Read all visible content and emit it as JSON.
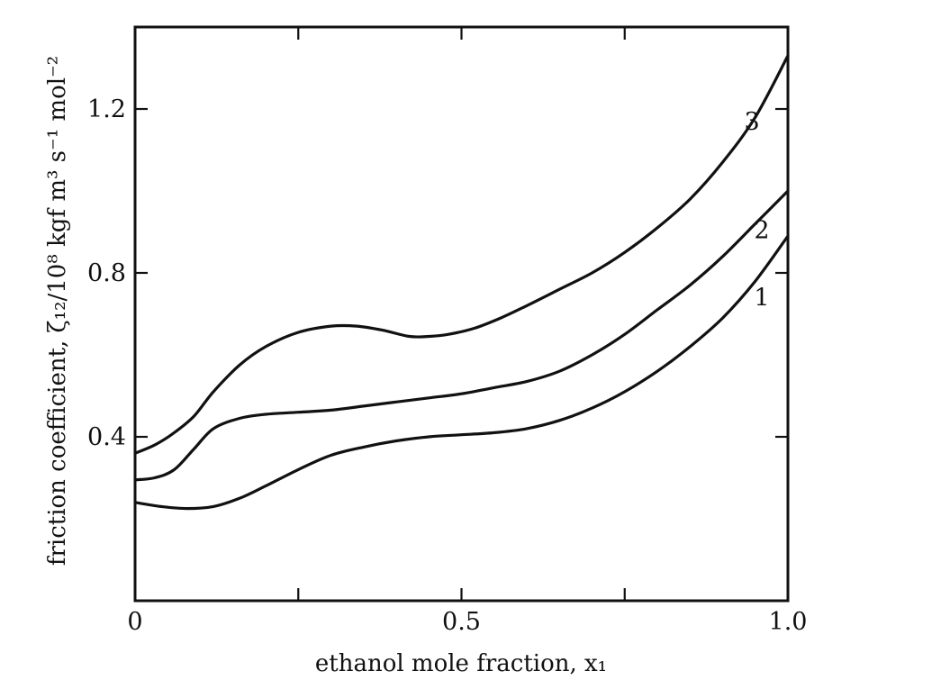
{
  "chart_data": {
    "type": "line",
    "xlabel": "ethanol mole fraction, x₁",
    "ylabel": "friction coefficient, ζ₁₂/10⁸ kgf m³ s⁻¹ mol⁻²",
    "xlim": [
      0,
      1.0
    ],
    "ylim": [
      0,
      1.4
    ],
    "x_ticks": [
      0,
      0.25,
      0.5,
      0.75,
      1.0
    ],
    "x_tick_labels": [
      "0",
      "0.5",
      "1.0"
    ],
    "x_tick_label_values": [
      0,
      0.5,
      1.0
    ],
    "y_ticks": [
      0.4,
      0.8,
      1.2
    ],
    "y_tick_labels": [
      "0.4",
      "0.8",
      "1.2"
    ],
    "grid": false,
    "legend": "none",
    "series": [
      {
        "name": "1",
        "x": [
          0,
          0.04,
          0.08,
          0.12,
          0.16,
          0.2,
          0.25,
          0.3,
          0.35,
          0.4,
          0.45,
          0.5,
          0.55,
          0.6,
          0.65,
          0.7,
          0.75,
          0.8,
          0.85,
          0.9,
          0.95,
          1.0
        ],
        "y": [
          0.24,
          0.23,
          0.225,
          0.23,
          0.25,
          0.28,
          0.32,
          0.355,
          0.375,
          0.39,
          0.4,
          0.405,
          0.41,
          0.42,
          0.44,
          0.47,
          0.51,
          0.56,
          0.62,
          0.69,
          0.78,
          0.89
        ]
      },
      {
        "name": "2",
        "x": [
          0,
          0.03,
          0.06,
          0.09,
          0.12,
          0.16,
          0.2,
          0.25,
          0.3,
          0.35,
          0.4,
          0.45,
          0.5,
          0.55,
          0.6,
          0.65,
          0.7,
          0.75,
          0.8,
          0.85,
          0.9,
          0.95,
          1.0
        ],
        "y": [
          0.295,
          0.3,
          0.32,
          0.37,
          0.42,
          0.445,
          0.455,
          0.46,
          0.465,
          0.475,
          0.485,
          0.495,
          0.505,
          0.52,
          0.535,
          0.56,
          0.6,
          0.65,
          0.71,
          0.77,
          0.84,
          0.92,
          1.0
        ]
      },
      {
        "name": "3",
        "x": [
          0,
          0.03,
          0.06,
          0.09,
          0.12,
          0.16,
          0.2,
          0.25,
          0.3,
          0.34,
          0.38,
          0.42,
          0.45,
          0.48,
          0.52,
          0.56,
          0.6,
          0.65,
          0.7,
          0.75,
          0.8,
          0.85,
          0.9,
          0.95,
          1.0
        ],
        "y": [
          0.36,
          0.38,
          0.41,
          0.45,
          0.51,
          0.575,
          0.62,
          0.655,
          0.67,
          0.67,
          0.66,
          0.645,
          0.645,
          0.65,
          0.665,
          0.69,
          0.72,
          0.76,
          0.8,
          0.85,
          0.91,
          0.98,
          1.07,
          1.18,
          1.33
        ]
      }
    ],
    "annotations": [
      {
        "text": "1",
        "x": 0.96,
        "y": 0.72
      },
      {
        "text": "2",
        "x": 0.96,
        "y": 0.885
      },
      {
        "text": "3",
        "x": 0.945,
        "y": 1.15
      }
    ]
  }
}
